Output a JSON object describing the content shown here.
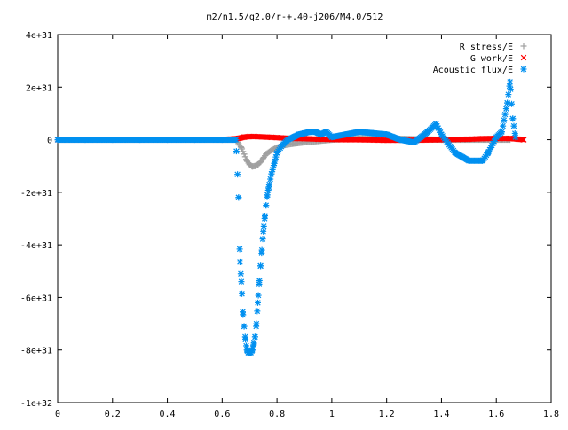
{
  "chart_data": {
    "type": "scatter",
    "title": "m2/n1.5/q2.0/r-+.40-j206/M4.0/512",
    "xlabel": "",
    "ylabel": "",
    "xlim": [
      0,
      1.8
    ],
    "ylim": [
      -1e+32,
      4e+31
    ],
    "xticks": [
      0,
      0.2,
      0.4,
      0.6,
      0.8,
      1,
      1.2,
      1.4,
      1.6,
      1.8
    ],
    "xtick_labels": [
      "0",
      "0.2",
      "0.4",
      "0.6",
      "0.8",
      "1",
      "1.2",
      "1.4",
      "1.6",
      "1.8"
    ],
    "yticks": [
      -1e+32,
      -8e+31,
      -6e+31,
      -4e+31,
      -2e+31,
      0,
      2e+31,
      4e+31
    ],
    "ytick_labels": [
      "-1e+32",
      "-8e+31",
      "-6e+31",
      "-4e+31",
      "-2e+31",
      "0",
      "2e+31",
      "4e+31"
    ],
    "grid": false,
    "legend_position": "top-right",
    "series": [
      {
        "name": "R stress/E",
        "marker": "plus",
        "color": "#a0a0a0",
        "x": [
          0.0,
          0.1,
          0.2,
          0.3,
          0.4,
          0.5,
          0.6,
          0.65,
          0.67,
          0.68,
          0.69,
          0.7,
          0.71,
          0.72,
          0.73,
          0.74,
          0.75,
          0.76,
          0.78,
          0.8,
          0.83,
          0.86,
          0.9,
          0.95,
          1.0,
          1.1,
          1.2,
          1.3,
          1.4,
          1.5,
          1.6,
          1.65
        ],
        "y": [
          0,
          0,
          0,
          0,
          0,
          0,
          0,
          0,
          -3e+30,
          -5.5e+30,
          -8e+30,
          -9.5e+30,
          -1.02e+31,
          -1e+31,
          -9.5e+30,
          -8.5e+30,
          -7e+30,
          -5.5e+30,
          -4e+30,
          -3e+30,
          -2e+30,
          -1.5e+30,
          -1e+30,
          -5e+29,
          0,
          5e+29,
          5e+29,
          2e+29,
          0,
          0,
          0,
          0
        ]
      },
      {
        "name": "G work/E",
        "marker": "cross",
        "color": "#ff0000",
        "x": [
          0.0,
          0.1,
          0.2,
          0.3,
          0.4,
          0.5,
          0.6,
          0.66,
          0.68,
          0.7,
          0.72,
          0.74,
          0.76,
          0.78,
          0.8,
          0.85,
          0.9,
          0.95,
          1.0,
          1.05,
          1.1,
          1.2,
          1.3,
          1.4,
          1.5,
          1.55,
          1.6,
          1.65,
          1.7
        ],
        "y": [
          0,
          0,
          0,
          0,
          0,
          0,
          0,
          5e+29,
          1e+30,
          1.2e+30,
          1.2e+30,
          1.1e+30,
          1e+30,
          9e+29,
          8e+29,
          5e+29,
          4e+29,
          2e+29,
          1e+29,
          0,
          0,
          -2e+29,
          -2e+29,
          0,
          2e+29,
          4e+29,
          5e+29,
          5e+29,
          0
        ]
      },
      {
        "name": "Acoustic flux/E",
        "marker": "star",
        "color": "#0090f0",
        "x": [
          0.0,
          0.1,
          0.2,
          0.3,
          0.4,
          0.5,
          0.6,
          0.65,
          0.66,
          0.665,
          0.67,
          0.675,
          0.68,
          0.685,
          0.69,
          0.695,
          0.7,
          0.705,
          0.71,
          0.715,
          0.72,
          0.725,
          0.73,
          0.735,
          0.74,
          0.745,
          0.75,
          0.755,
          0.76,
          0.765,
          0.77,
          0.78,
          0.79,
          0.8,
          0.82,
          0.84,
          0.86,
          0.88,
          0.9,
          0.92,
          0.94,
          0.96,
          0.98,
          1.0,
          1.05,
          1.1,
          1.15,
          1.2,
          1.25,
          1.3,
          1.35,
          1.38,
          1.4,
          1.45,
          1.5,
          1.55,
          1.57,
          1.6,
          1.62,
          1.64,
          1.65,
          1.66,
          1.67
        ],
        "y": [
          0,
          0,
          0,
          0,
          0,
          0,
          0,
          0,
          -2.2e+31,
          -4.65e+31,
          -5.4e+31,
          -6.55e+31,
          -7.1e+31,
          -7.6e+31,
          -8e+31,
          -8.1e+31,
          -8.1e+31,
          -8.1e+31,
          -8e+31,
          -7.8e+31,
          -7.5e+31,
          -7e+31,
          -6.2e+31,
          -5.5e+31,
          -4.8e+31,
          -4.2e+31,
          -3.5e+31,
          -3e+31,
          -2.5e+31,
          -2.1e+31,
          -1.8e+31,
          -1.3e+31,
          -9e+30,
          -5e+30,
          -2e+30,
          0,
          1e+30,
          2e+30,
          2.5e+30,
          3e+30,
          3e+30,
          2e+30,
          3e+30,
          1e+30,
          2e+30,
          3e+30,
          2.5e+30,
          2e+30,
          0,
          -1e+30,
          3e+30,
          6e+30,
          2e+30,
          -5e+30,
          -8e+30,
          -8e+30,
          -5e+30,
          1e+30,
          3e+30,
          1.4e+31,
          2.2e+31,
          8e+30,
          1e+30
        ]
      }
    ]
  }
}
